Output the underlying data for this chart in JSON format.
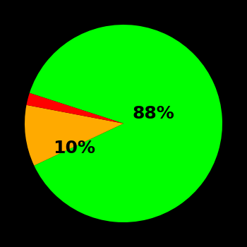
{
  "slices": [
    88,
    10,
    2
  ],
  "colors": [
    "#00ff00",
    "#ffaa00",
    "#ff0000"
  ],
  "labels": [
    "88%",
    "10%",
    ""
  ],
  "background_color": "#000000",
  "startangle": 162,
  "label_fontsize": 18,
  "label_fontweight": "bold"
}
